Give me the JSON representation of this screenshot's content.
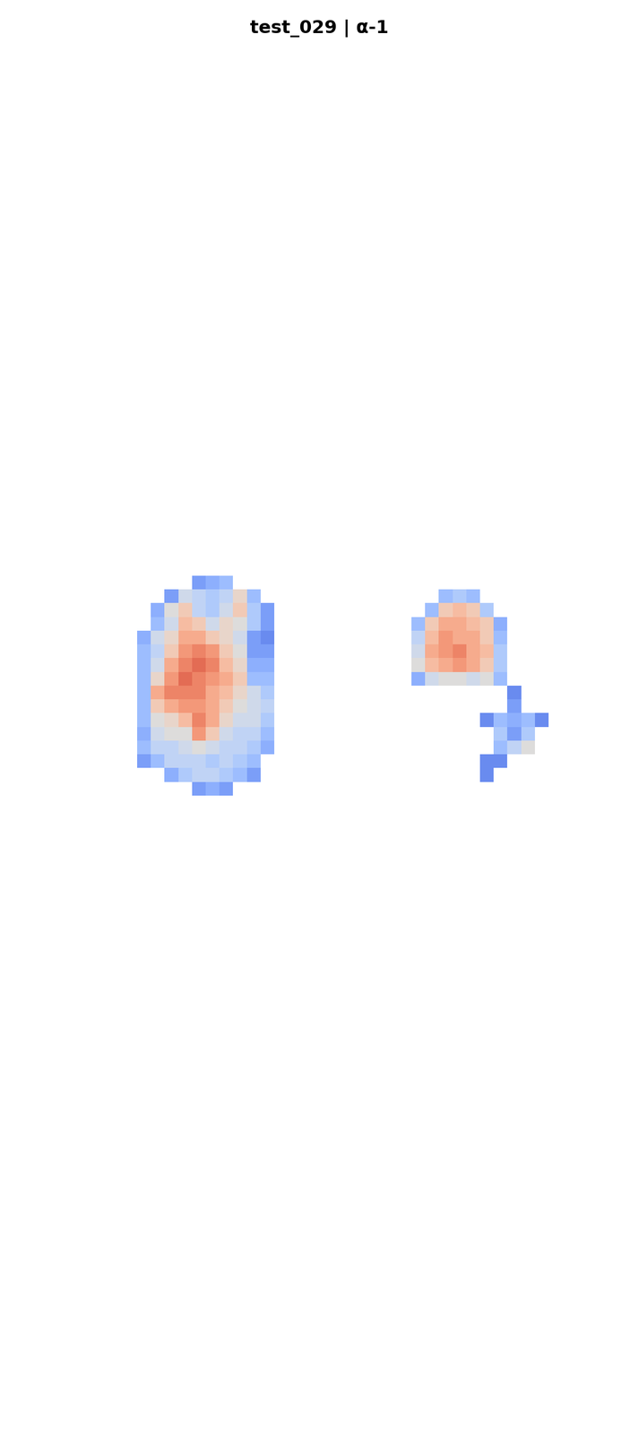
{
  "chart_data": {
    "type": "heatmap",
    "title": "test_029 | α-1",
    "tick_labels": false,
    "clim": [
      0,
      1
    ],
    "cells": [
      [
        null,
        null,
        null,
        null,
        0.2,
        0.25,
        0.3,
        null,
        null,
        null,
        null,
        null,
        null,
        null,
        null,
        null,
        null,
        null,
        null,
        null,
        null,
        null,
        null,
        null,
        null,
        null,
        null,
        null,
        null,
        null
      ],
      [
        null,
        null,
        0.2,
        0.45,
        0.4,
        0.35,
        0.4,
        0.55,
        0.3,
        null,
        null,
        null,
        null,
        null,
        null,
        null,
        null,
        null,
        null,
        null,
        null,
        null,
        0.3,
        0.35,
        0.3,
        null,
        null,
        null,
        null,
        null
      ],
      [
        null,
        0.25,
        0.5,
        0.6,
        0.4,
        0.35,
        0.45,
        0.6,
        0.35,
        0.2,
        null,
        null,
        null,
        null,
        null,
        null,
        null,
        null,
        null,
        null,
        null,
        0.3,
        0.6,
        0.65,
        0.6,
        0.35,
        null,
        null,
        null,
        null
      ],
      [
        null,
        0.3,
        0.45,
        0.65,
        0.6,
        0.45,
        0.55,
        0.5,
        0.35,
        0.2,
        null,
        null,
        null,
        null,
        null,
        null,
        null,
        null,
        null,
        null,
        0.3,
        0.6,
        0.7,
        0.7,
        0.65,
        0.6,
        0.25,
        null,
        null,
        null
      ],
      [
        0.25,
        0.45,
        0.55,
        0.7,
        0.7,
        0.6,
        0.55,
        0.45,
        0.2,
        0.15,
        null,
        null,
        null,
        null,
        null,
        null,
        null,
        null,
        null,
        null,
        0.4,
        0.65,
        0.75,
        0.7,
        0.7,
        0.6,
        0.3,
        null,
        null,
        null
      ],
      [
        0.3,
        0.4,
        0.6,
        0.75,
        0.8,
        0.75,
        0.6,
        0.5,
        0.2,
        0.2,
        null,
        null,
        null,
        null,
        null,
        null,
        null,
        null,
        null,
        null,
        0.45,
        0.7,
        0.75,
        0.8,
        0.7,
        0.65,
        0.35,
        null,
        null,
        null
      ],
      [
        0.3,
        0.45,
        0.7,
        0.8,
        0.85,
        0.8,
        0.65,
        0.55,
        0.25,
        0.25,
        null,
        null,
        null,
        null,
        null,
        null,
        null,
        null,
        null,
        null,
        0.5,
        0.65,
        0.7,
        0.75,
        0.7,
        0.6,
        0.35,
        null,
        null,
        null
      ],
      [
        0.3,
        0.55,
        0.75,
        0.85,
        0.8,
        0.75,
        0.7,
        0.6,
        0.3,
        0.3,
        null,
        null,
        null,
        null,
        null,
        null,
        null,
        null,
        null,
        null,
        0.25,
        0.45,
        0.5,
        0.5,
        0.45,
        0.5,
        0.3,
        null,
        null,
        null
      ],
      [
        0.3,
        0.7,
        0.8,
        0.8,
        0.8,
        0.7,
        0.65,
        0.55,
        0.45,
        0.35,
        null,
        null,
        null,
        null,
        null,
        null,
        null,
        null,
        null,
        null,
        null,
        null,
        null,
        null,
        null,
        null,
        null,
        0.15,
        null,
        null
      ],
      [
        0.3,
        0.6,
        0.7,
        0.75,
        0.75,
        0.7,
        0.6,
        0.5,
        0.45,
        0.4,
        null,
        null,
        null,
        null,
        null,
        null,
        null,
        null,
        null,
        null,
        null,
        null,
        null,
        null,
        null,
        null,
        null,
        0.2,
        null,
        null
      ],
      [
        0.3,
        0.5,
        0.55,
        0.65,
        0.8,
        0.7,
        0.55,
        0.45,
        0.45,
        0.35,
        null,
        null,
        null,
        null,
        null,
        null,
        null,
        null,
        null,
        null,
        null,
        null,
        null,
        null,
        null,
        0.15,
        0.3,
        0.25,
        0.3,
        0.15
      ],
      [
        0.25,
        0.45,
        0.5,
        0.5,
        0.75,
        0.6,
        0.45,
        0.4,
        0.4,
        0.3,
        null,
        null,
        null,
        null,
        null,
        null,
        null,
        null,
        null,
        null,
        null,
        null,
        null,
        null,
        null,
        null,
        0.35,
        0.2,
        0.35,
        null
      ],
      [
        0.3,
        0.4,
        0.4,
        0.45,
        0.5,
        0.45,
        0.4,
        0.4,
        0.35,
        0.25,
        null,
        null,
        null,
        null,
        null,
        null,
        null,
        null,
        null,
        null,
        null,
        null,
        null,
        null,
        null,
        null,
        0.3,
        0.4,
        0.5,
        null
      ],
      [
        0.2,
        0.3,
        0.4,
        0.4,
        0.4,
        0.35,
        0.4,
        0.35,
        0.3,
        null,
        null,
        null,
        null,
        null,
        null,
        null,
        null,
        null,
        null,
        null,
        null,
        null,
        null,
        null,
        null,
        0.15,
        0.15,
        null,
        null,
        null
      ],
      [
        null,
        null,
        0.25,
        0.35,
        0.4,
        0.4,
        0.35,
        0.3,
        0.2,
        null,
        null,
        null,
        null,
        null,
        null,
        null,
        null,
        null,
        null,
        null,
        null,
        null,
        null,
        null,
        null,
        0.15,
        null,
        null,
        null,
        null
      ],
      [
        null,
        null,
        null,
        null,
        0.2,
        0.25,
        0.2,
        null,
        null,
        null,
        null,
        null,
        null,
        null,
        null,
        null,
        null,
        null,
        null,
        null,
        null,
        null,
        null,
        null,
        null,
        null,
        null,
        null,
        null,
        null
      ]
    ]
  }
}
